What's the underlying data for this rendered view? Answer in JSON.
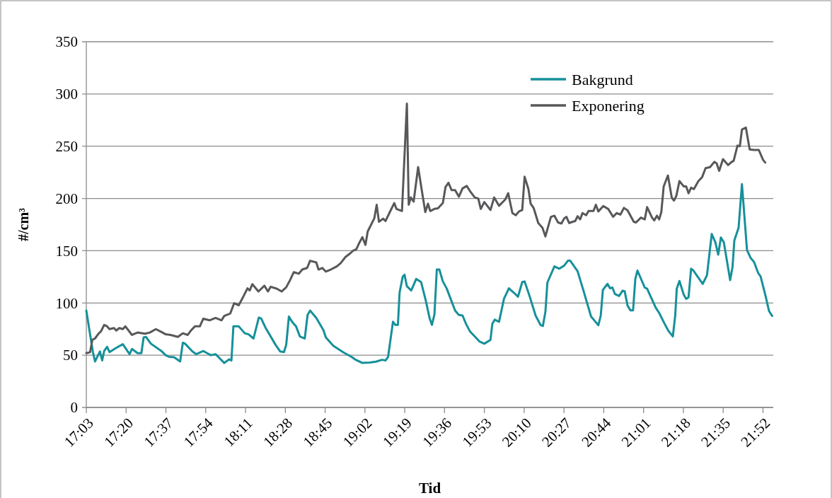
{
  "chart_data": {
    "type": "line",
    "xlabel": "Tid",
    "ylabel": "#/cm³",
    "xlim": [
      17.05,
      21.94
    ],
    "ylim": [
      0,
      350
    ],
    "yticks": [
      0,
      50,
      100,
      150,
      200,
      250,
      300,
      350
    ],
    "xticks": [
      {
        "value": 17.05,
        "label": "17:03"
      },
      {
        "value": 17.3333,
        "label": "17:20"
      },
      {
        "value": 17.6167,
        "label": "17:37"
      },
      {
        "value": 17.9,
        "label": "17:54"
      },
      {
        "value": 18.1833,
        "label": "18:11"
      },
      {
        "value": 18.4667,
        "label": "18:28"
      },
      {
        "value": 18.75,
        "label": "18:45"
      },
      {
        "value": 19.0333,
        "label": "19:02"
      },
      {
        "value": 19.3167,
        "label": "19:19"
      },
      {
        "value": 19.6,
        "label": "19:36"
      },
      {
        "value": 19.8833,
        "label": "19:53"
      },
      {
        "value": 20.1667,
        "label": "20:10"
      },
      {
        "value": 20.45,
        "label": "20:27"
      },
      {
        "value": 20.7333,
        "label": "20:44"
      },
      {
        "value": 21.0167,
        "label": "21:01"
      },
      {
        "value": 21.3,
        "label": "21:18"
      },
      {
        "value": 21.5833,
        "label": "21:35"
      },
      {
        "value": 21.8667,
        "label": "21:52"
      }
    ],
    "grid": "y",
    "legend": "top right",
    "marker": "none",
    "line_style": "solid",
    "series": [
      {
        "name": "Bakgrund",
        "color": "#16909a",
        "x": [
          17.05,
          17.097,
          17.112,
          17.147,
          17.163,
          17.177,
          17.198,
          17.215,
          17.263,
          17.31,
          17.358,
          17.375,
          17.415,
          17.442,
          17.458,
          17.475,
          17.51,
          17.588,
          17.615,
          17.64,
          17.675,
          17.718,
          17.737,
          17.753,
          17.805,
          17.832,
          17.883,
          17.91,
          17.937,
          17.97,
          18.032,
          18.067,
          18.083,
          18.097,
          18.135,
          18.178,
          18.205,
          18.24,
          18.278,
          18.295,
          18.327,
          18.397,
          18.43,
          18.457,
          18.473,
          18.492,
          18.517,
          18.543,
          18.57,
          18.605,
          18.625,
          18.643,
          18.687,
          18.738,
          18.755,
          18.808,
          18.877,
          18.938,
          18.963,
          19.015,
          19.068,
          19.112,
          19.155,
          19.18,
          19.198,
          19.233,
          19.25,
          19.268,
          19.28,
          19.302,
          19.315,
          19.332,
          19.363,
          19.398,
          19.433,
          19.467,
          19.493,
          19.51,
          19.528,
          19.545,
          19.563,
          19.588,
          19.615,
          19.675,
          19.702,
          19.728,
          19.753,
          19.78,
          19.805,
          19.85,
          19.883,
          19.927,
          19.94,
          19.957,
          19.988,
          20.023,
          20.058,
          20.092,
          20.123,
          20.153,
          20.17,
          20.205,
          20.248,
          20.283,
          20.3,
          20.318,
          20.332,
          20.382,
          20.417,
          20.452,
          20.478,
          20.495,
          20.547,
          20.59,
          20.643,
          20.668,
          20.695,
          20.712,
          20.727,
          20.76,
          20.778,
          20.795,
          20.813,
          20.842,
          20.868,
          20.882,
          20.903,
          20.923,
          20.942,
          20.958,
          20.973,
          21.025,
          21.042,
          21.103,
          21.128,
          21.163,
          21.195,
          21.225,
          21.242,
          21.253,
          21.272,
          21.303,
          21.32,
          21.337,
          21.355,
          21.372,
          21.398,
          21.438,
          21.468,
          21.502,
          21.528,
          21.548,
          21.567,
          21.588,
          21.633,
          21.65,
          21.663,
          21.693,
          21.717,
          21.753,
          21.78,
          21.803,
          21.832,
          21.85,
          21.885,
          21.91,
          21.932
        ],
        "values": [
          92.7,
          53,
          44,
          53.6,
          45,
          54,
          58,
          53,
          57,
          60.5,
          51,
          56,
          52,
          52,
          67,
          67.5,
          61,
          53.6,
          50,
          48.4,
          48,
          44,
          62,
          61,
          53.6,
          51,
          54,
          52,
          50,
          51,
          42.6,
          46,
          45,
          77.6,
          77.6,
          71,
          70,
          66,
          86,
          85,
          76,
          60,
          53.6,
          53,
          60,
          87,
          81.5,
          77.6,
          68,
          66,
          88.5,
          92.7,
          85.7,
          74,
          67,
          59,
          53,
          48.4,
          46,
          42.6,
          43,
          43.8,
          45.6,
          45,
          48.4,
          82,
          79,
          79,
          110,
          125,
          127,
          116,
          112,
          123,
          120,
          102,
          85.7,
          79,
          89,
          132,
          132,
          120.6,
          114,
          92.7,
          88.5,
          88,
          80,
          73,
          69.4,
          63,
          61,
          64.7,
          80,
          84,
          82,
          104,
          114,
          110,
          106,
          120,
          120.6,
          106.7,
          88,
          79,
          78,
          91.5,
          119.5,
          135,
          132.8,
          135.8,
          140.4,
          140.4,
          130.4,
          111.3,
          87,
          83,
          78.7,
          88,
          112.5,
          118.3,
          114,
          114.8,
          108.5,
          106.7,
          111.8,
          111.3,
          97.4,
          93,
          93,
          123,
          131,
          114.8,
          113.7,
          95.5,
          90.4,
          81,
          73,
          68,
          88,
          113.7,
          121,
          107.8,
          103.9,
          105.5,
          132.8,
          131,
          125.8,
          118.3,
          126.5,
          166,
          158,
          146.3,
          162.6,
          158,
          121.8,
          134.6,
          160,
          171.9,
          213.8,
          150.5,
          142.8,
          139.3,
          128.8,
          125.3,
          106.7,
          92.2,
          87.6
        ]
      },
      {
        "name": "Exponering",
        "color": "#58585b",
        "x": [
          17.05,
          17.077,
          17.093,
          17.112,
          17.137,
          17.155,
          17.177,
          17.195,
          17.215,
          17.247,
          17.263,
          17.285,
          17.31,
          17.328,
          17.375,
          17.415,
          17.467,
          17.502,
          17.545,
          17.588,
          17.615,
          17.65,
          17.702,
          17.737,
          17.772,
          17.797,
          17.823,
          17.858,
          17.883,
          17.927,
          17.97,
          18.013,
          18.032,
          18.075,
          18.102,
          18.135,
          18.17,
          18.197,
          18.213,
          18.232,
          18.275,
          18.318,
          18.343,
          18.362,
          18.405,
          18.44,
          18.473,
          18.5,
          18.527,
          18.562,
          18.587,
          18.622,
          18.643,
          18.687,
          18.703,
          18.73,
          18.755,
          18.79,
          18.833,
          18.86,
          18.895,
          18.928,
          18.947,
          18.972,
          18.99,
          19.015,
          19.037,
          19.053,
          19.1,
          19.117,
          19.133,
          19.163,
          19.18,
          19.207,
          19.242,
          19.258,
          19.297,
          19.332,
          19.345,
          19.36,
          19.38,
          19.412,
          19.442,
          19.463,
          19.482,
          19.498,
          19.528,
          19.553,
          19.588,
          19.607,
          19.628,
          19.65,
          19.675,
          19.702,
          19.728,
          19.758,
          19.78,
          19.815,
          19.84,
          19.858,
          19.883,
          19.927,
          19.953,
          19.988,
          20.032,
          20.053,
          20.083,
          20.107,
          20.13,
          20.153,
          20.17,
          20.197,
          20.213,
          20.235,
          20.267,
          20.297,
          20.318,
          20.33,
          20.357,
          20.382,
          20.408,
          20.432,
          20.452,
          20.468,
          20.487,
          20.512,
          20.53,
          20.547,
          20.565,
          20.582,
          20.608,
          20.625,
          20.66,
          20.677,
          20.695,
          20.73,
          20.765,
          20.8,
          20.825,
          20.852,
          20.877,
          20.903,
          20.947,
          20.963,
          20.998,
          21.025,
          21.042,
          21.077,
          21.093,
          21.112,
          21.128,
          21.143,
          21.16,
          21.19,
          21.217,
          21.233,
          21.25,
          21.272,
          21.303,
          21.32,
          21.337,
          21.355,
          21.375,
          21.407,
          21.433,
          21.458,
          21.49,
          21.52,
          21.537,
          21.555,
          21.582,
          21.618,
          21.642,
          21.658,
          21.685,
          21.702,
          21.717,
          21.745,
          21.772,
          21.803,
          21.823,
          21.837,
          21.867,
          21.883
        ],
        "values": [
          52,
          53,
          64.7,
          66,
          70.6,
          73,
          79,
          78,
          75,
          76,
          73.6,
          76,
          75,
          77.6,
          69.4,
          71.7,
          70.6,
          71.7,
          75,
          72,
          70,
          69.4,
          67.5,
          71,
          69.4,
          74,
          77.6,
          77.6,
          85,
          83.4,
          85.7,
          83.4,
          87.6,
          90,
          99.7,
          97.8,
          106.7,
          114,
          112,
          118,
          111,
          116.5,
          111,
          115.5,
          113.7,
          111,
          115,
          121.8,
          129.5,
          128,
          132,
          133.5,
          140.4,
          138.8,
          132,
          133.5,
          130,
          132,
          135,
          138,
          144,
          147.4,
          149.8,
          151.4,
          156.7,
          163,
          155.6,
          168.4,
          181,
          194,
          177.7,
          180.7,
          178.4,
          186,
          195.6,
          190,
          188,
          290.7,
          194,
          201,
          197,
          230,
          204.5,
          187,
          195,
          188,
          190,
          190.6,
          195.6,
          211,
          215,
          208,
          208,
          201.7,
          209.6,
          212,
          207.3,
          201,
          200,
          190,
          196.6,
          189,
          201,
          193,
          199,
          205,
          186,
          184,
          187.6,
          189,
          220.8,
          209,
          195,
          190.6,
          176.5,
          172,
          163.7,
          169.5,
          182.4,
          183.5,
          177,
          176,
          181,
          182.4,
          176.5,
          177.7,
          178.4,
          183,
          180,
          186,
          184,
          188,
          188,
          194,
          187.6,
          192.7,
          190,
          182.4,
          186,
          184.6,
          191,
          188.6,
          177.7,
          177,
          181.7,
          180,
          191.7,
          181.7,
          179,
          183.5,
          180,
          187,
          211.5,
          222,
          201,
          198,
          202.5,
          216.6,
          211.5,
          211.5,
          205,
          210.3,
          209,
          216.6,
          220.3,
          229,
          230,
          235,
          233.5,
          226.5,
          237.6,
          232,
          234.8,
          236,
          250.6,
          250,
          266,
          267.8,
          247,
          246.4,
          246.4,
          246.4,
          237,
          234.3
        ]
      }
    ]
  }
}
